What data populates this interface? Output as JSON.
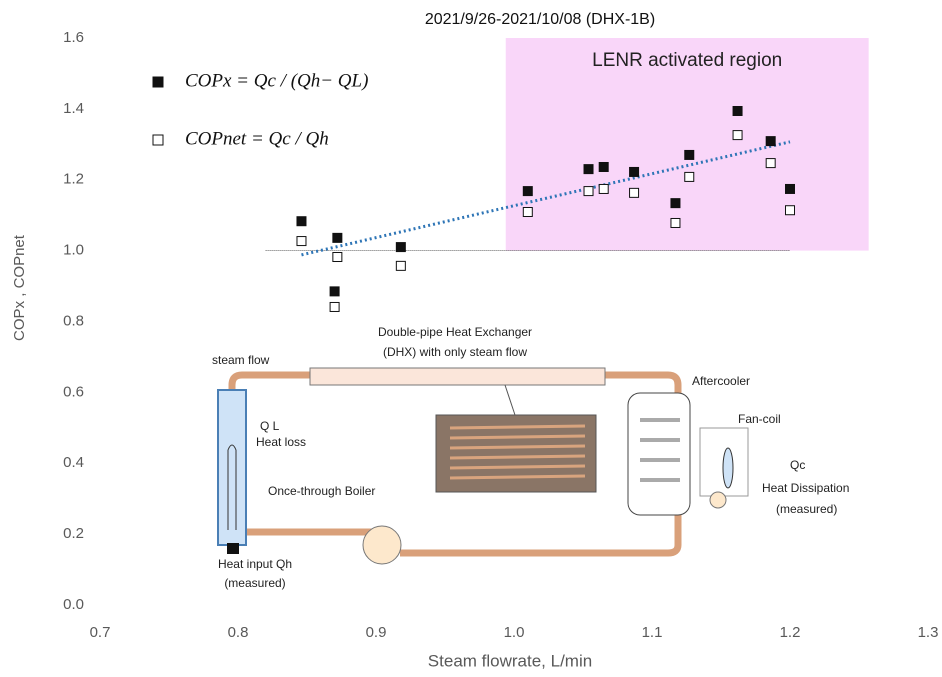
{
  "chart_data": {
    "type": "scatter",
    "title": "2021/9/26-2021/10/08 (DHX-1B)",
    "x_label": "Steam flowrate, L/min",
    "y_label": "COPx , COPnet",
    "xlim": [
      0.7,
      1.3
    ],
    "xticks": [
      0.7,
      0.8,
      0.9,
      {
        "value": 1,
        "label": "1.0"
      },
      1.1,
      1.2,
      1.3
    ],
    "ylim": [
      0,
      1.6
    ],
    "yticks": [
      {
        "value": 0,
        "label": "0.0"
      },
      0.2,
      0.4,
      0.6,
      0.8,
      {
        "value": 1,
        "label": "1.0"
      },
      1.2,
      1.4,
      1.6
    ],
    "series": [
      {
        "name": "COPx = Qc / (Qh− QL)",
        "color": "#111111",
        "marker": "filled",
        "x": [
          0.846,
          0.87,
          0.872,
          0.918,
          1.01,
          1.054,
          1.065,
          1.087,
          1.117,
          1.127,
          1.162,
          1.186,
          1.2
        ],
        "values": [
          1.083,
          0.885,
          1.036,
          1.01,
          1.168,
          1.23,
          1.236,
          1.222,
          1.134,
          1.27,
          1.394,
          1.309,
          1.174
        ]
      },
      {
        "name": "COPnet = Qc / Qh",
        "color": "#111111",
        "marker": "open",
        "x": [
          0.846,
          0.87,
          0.872,
          0.918,
          1.01,
          1.054,
          1.065,
          1.087,
          1.117,
          1.127,
          1.162,
          1.186,
          1.2
        ],
        "values": [
          1.027,
          0.841,
          0.982,
          0.957,
          1.109,
          1.168,
          1.174,
          1.163,
          1.078,
          1.208,
          1.326,
          1.247,
          1.114
        ]
      }
    ],
    "trendline": {
      "color": "#2e75b6",
      "x": [
        0.846,
        1.2
      ],
      "values": [
        0.988,
        1.307
      ]
    },
    "reference_line": {
      "value": 1,
      "x": [
        0.82,
        1.2
      ]
    },
    "region": {
      "label": "LENR activated region",
      "xlim": [
        0.994,
        1.257
      ],
      "ylim": [
        1,
        1.6
      ],
      "color": "#f9d6f9"
    },
    "inset": {
      "steam_flow": "steam flow",
      "dhx": [
        "Double-pipe Heat Exchanger",
        "(DHX) with only steam flow"
      ],
      "aftercooler": "Aftercooler",
      "fan_coil": "Fan-coil",
      "ql": "Q L",
      "heat_loss": "Heat loss",
      "boiler": "Once-through Boiler",
      "qc": "Qc",
      "heat_dissipation": [
        "Heat Dissipation",
        "(measured)"
      ],
      "heat_input": [
        "Heat input Qh",
        "(measured)"
      ]
    }
  }
}
